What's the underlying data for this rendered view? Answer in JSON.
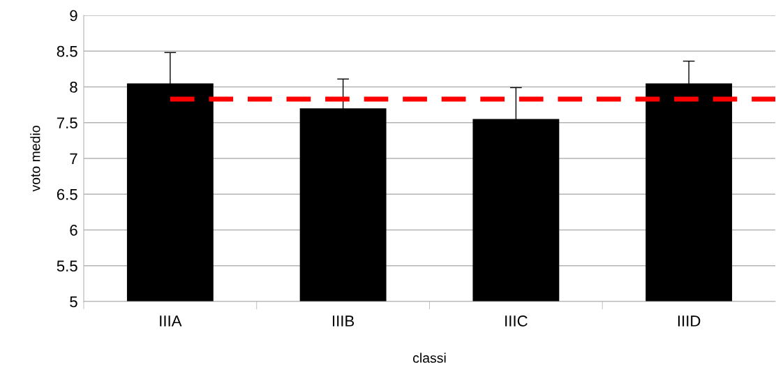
{
  "chart_data": {
    "type": "bar",
    "xlabel": "classi",
    "ylabel": "voto medio",
    "categories": [
      "IIIA",
      "IIIB",
      "IIIC",
      "IIID"
    ],
    "values": [
      8.05,
      7.7,
      7.55,
      8.05
    ],
    "errors": [
      0.43,
      0.41,
      0.44,
      0.31
    ],
    "color": "#000000",
    "ylim": [
      5,
      9
    ],
    "yticks": [
      5,
      5.5,
      6,
      6.5,
      7,
      7.5,
      8,
      8.5,
      9
    ],
    "grid": "y",
    "ref_lines": [
      {
        "axis": "y",
        "value": 7.83,
        "color": "#ff0000",
        "line_style": "dashed"
      }
    ]
  }
}
